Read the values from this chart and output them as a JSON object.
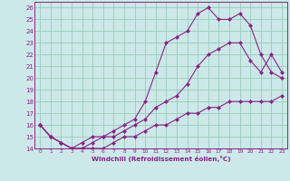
{
  "xlabel": "Windchill (Refroidissement éolien,°C)",
  "xlim": [
    -0.5,
    23.5
  ],
  "ylim": [
    14,
    26.5
  ],
  "yticks": [
    14,
    15,
    16,
    17,
    18,
    19,
    20,
    21,
    22,
    23,
    24,
    25,
    26
  ],
  "xticks": [
    0,
    1,
    2,
    3,
    4,
    5,
    6,
    7,
    8,
    9,
    10,
    11,
    12,
    13,
    14,
    15,
    16,
    17,
    18,
    19,
    20,
    21,
    22,
    23
  ],
  "bg_color": "#cce8e8",
  "line_color": "#882288",
  "grid_color": "#99ccbb",
  "curve_bottom_x": [
    0,
    1,
    2,
    3,
    4,
    5,
    6,
    7,
    8,
    9,
    10,
    11,
    12,
    13,
    14,
    15,
    16,
    17,
    18,
    19,
    20,
    21,
    22,
    23
  ],
  "curve_bottom_y": [
    16.0,
    15.0,
    14.5,
    14.0,
    14.0,
    14.0,
    14.0,
    14.5,
    15.0,
    15.0,
    15.5,
    16.0,
    16.0,
    16.5,
    17.0,
    17.0,
    17.5,
    17.5,
    18.0,
    18.0,
    18.0,
    18.0,
    18.0,
    18.5
  ],
  "curve_mid_x": [
    0,
    1,
    2,
    3,
    4,
    5,
    6,
    7,
    8,
    9,
    10,
    11,
    12,
    13,
    14,
    15,
    16,
    17,
    18,
    19,
    20,
    21,
    22,
    23
  ],
  "curve_mid_y": [
    16.0,
    15.0,
    14.5,
    14.0,
    14.0,
    14.5,
    15.0,
    15.0,
    15.5,
    16.0,
    16.5,
    17.5,
    18.0,
    18.5,
    19.5,
    21.0,
    22.0,
    22.5,
    23.0,
    23.0,
    21.5,
    20.5,
    22.0,
    20.5
  ],
  "curve_top_x": [
    0,
    1,
    2,
    3,
    4,
    5,
    6,
    7,
    8,
    9,
    10,
    11,
    12,
    13,
    14,
    15,
    16,
    17,
    18,
    19,
    20,
    21,
    22,
    23
  ],
  "curve_top_y": [
    16.0,
    15.0,
    14.5,
    14.0,
    14.5,
    15.0,
    15.0,
    15.5,
    16.0,
    16.5,
    18.0,
    20.5,
    23.0,
    23.5,
    24.0,
    25.5,
    26.0,
    25.0,
    25.0,
    25.5,
    24.5,
    22.0,
    20.5,
    20.0
  ]
}
